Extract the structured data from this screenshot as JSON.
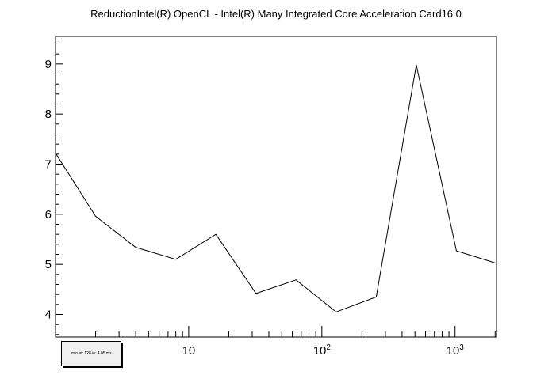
{
  "chart_data": {
    "type": "line",
    "title": "ReductionIntel(R) OpenCL - Intel(R) Many Integrated Core Acceleration Card16.0",
    "xlabel": "",
    "ylabel": "",
    "x_scale": "log",
    "xlim": [
      1,
      2048
    ],
    "ylim": [
      3.55,
      9.55
    ],
    "x_tick_labels": [
      {
        "value": 10,
        "base": "10",
        "exp": ""
      },
      {
        "value": 100,
        "base": "10",
        "exp": "2"
      },
      {
        "value": 1000,
        "base": "10",
        "exp": "3"
      }
    ],
    "y_ticks": [
      4,
      5,
      6,
      7,
      8,
      9
    ],
    "grid": false,
    "series": [
      {
        "x": [
          1,
          2,
          4,
          8,
          16,
          32,
          64,
          128,
          256,
          512,
          1024,
          2048
        ],
        "values": [
          7.22,
          5.96,
          5.34,
          5.1,
          5.6,
          4.42,
          4.69,
          4.05,
          4.35,
          8.98,
          5.27,
          5.02
        ]
      }
    ]
  },
  "legend": {
    "text": "min at: 128 in: 4.05 ms"
  }
}
